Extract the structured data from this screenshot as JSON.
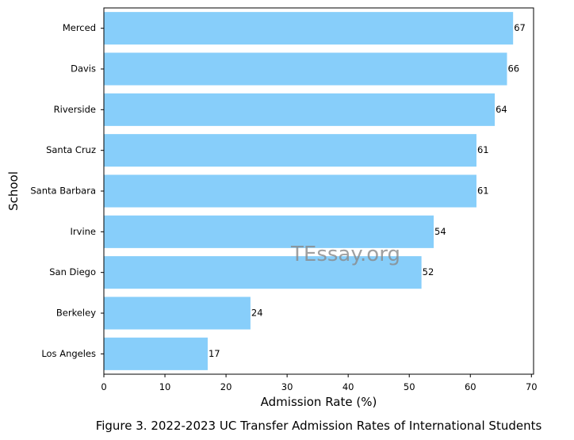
{
  "chart_data": {
    "type": "bar",
    "orientation": "horizontal",
    "categories": [
      "Merced",
      "Davis",
      "Riverside",
      "Santa Cruz",
      "Santa Barbara",
      "Irvine",
      "San Diego",
      "Berkeley",
      "Los Angeles"
    ],
    "values": [
      67,
      66,
      64,
      61,
      61,
      54,
      52,
      24,
      17
    ],
    "xlabel": "Admission Rate (%)",
    "ylabel": "School",
    "xlim": [
      0,
      70.35
    ],
    "xticks": [
      0,
      10,
      20,
      30,
      40,
      50,
      60,
      70
    ],
    "bar_color": "#87cefa",
    "grid": false,
    "data_labels": true
  },
  "caption": "Figure 3. 2022-2023 UC Transfer Admission Rates of International Students",
  "watermark": "TEssay.org"
}
